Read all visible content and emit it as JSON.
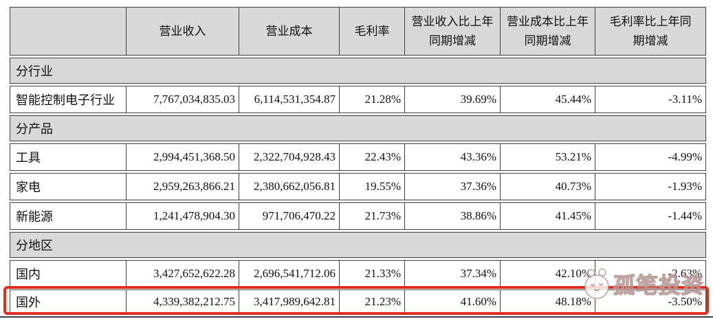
{
  "table": {
    "columns": [
      "",
      "营业收入",
      "营业成本",
      "毛利率",
      "营业收入比上年\n同期增减",
      "营业成本比上年\n同期增减",
      "毛利率比上年同\n期增减"
    ],
    "rows": [
      {
        "type": "section",
        "label": "分行业"
      },
      {
        "type": "data",
        "label": "智能控制电子行业",
        "values": [
          "7,767,034,835.03",
          "6,114,531,354.87",
          "21.28%",
          "39.69%",
          "45.44%",
          "-3.11%"
        ]
      },
      {
        "type": "section",
        "label": "分产品"
      },
      {
        "type": "data",
        "label": "工具",
        "values": [
          "2,994,451,368.50",
          "2,322,704,928.43",
          "22.43%",
          "43.36%",
          "53.21%",
          "-4.99%"
        ]
      },
      {
        "type": "data",
        "label": "家电",
        "values": [
          "2,959,263,866.21",
          "2,380,662,056.81",
          "19.55%",
          "37.36%",
          "40.73%",
          "-1.93%"
        ]
      },
      {
        "type": "data",
        "label": "新能源",
        "values": [
          "1,241,478,904.30",
          "971,706,470.22",
          "21.73%",
          "38.86%",
          "41.45%",
          "-1.44%"
        ]
      },
      {
        "type": "section",
        "label": "分地区"
      },
      {
        "type": "data",
        "label": "国内",
        "values": [
          "3,427,652,622.28",
          "2,696,541,712.06",
          "21.33%",
          "37.34%",
          "42.10%",
          "-2.63%"
        ]
      },
      {
        "type": "data",
        "label": "国外",
        "highlighted": true,
        "values": [
          "4,339,382,212.75",
          "3,417,989,642.81",
          "21.23%",
          "41.60%",
          "48.18%",
          "-3.50%"
        ]
      }
    ]
  },
  "annotation": {
    "highlight_row": "国外"
  },
  "watermark": {
    "text": "孤笔投资"
  },
  "colors": {
    "highlight_red": "#e02b1d",
    "header_gray": "#d9d9d9",
    "border": "#3f3f3f"
  }
}
